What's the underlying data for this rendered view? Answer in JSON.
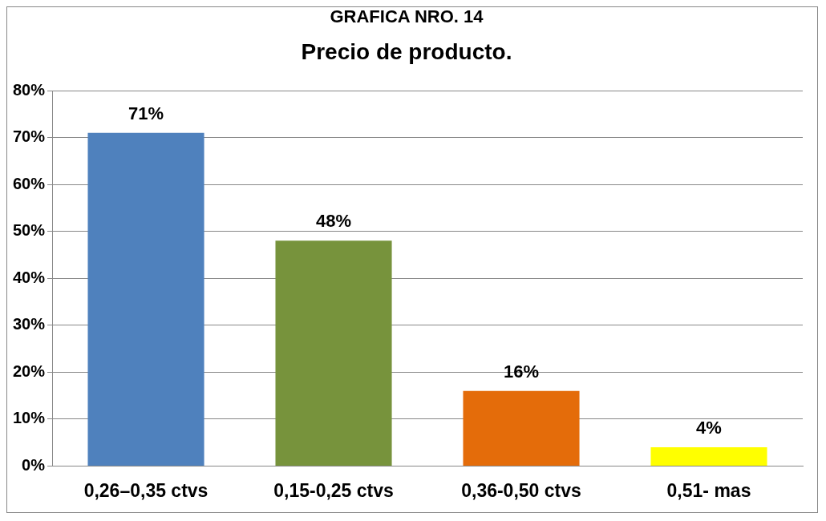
{
  "chart_data": {
    "type": "bar",
    "title": "GRAFICA NRO. 14",
    "subtitle": "Precio de producto.",
    "categories": [
      "0,26–0,35 ctvs",
      "0,15-0,25 ctvs",
      "0,36-0,50 ctvs",
      "0,51- mas"
    ],
    "values": [
      71,
      48,
      16,
      4
    ],
    "colors": [
      "#4f81bd",
      "#77933c",
      "#e46c0a",
      "#ffff00"
    ],
    "value_labels": [
      "71%",
      "48%",
      "16%",
      "4%"
    ],
    "ylim": [
      0,
      80
    ],
    "yticks": [
      {
        "value": 0,
        "label": "0%"
      },
      {
        "value": 10,
        "label": "10%"
      },
      {
        "value": 20,
        "label": "20%"
      },
      {
        "value": 30,
        "label": "30%"
      },
      {
        "value": 40,
        "label": "40%"
      },
      {
        "value": 50,
        "label": "50%"
      },
      {
        "value": 60,
        "label": "60%"
      },
      {
        "value": 70,
        "label": "70%"
      },
      {
        "value": 80,
        "label": "80%"
      }
    ],
    "grid": "y",
    "legend": false
  }
}
